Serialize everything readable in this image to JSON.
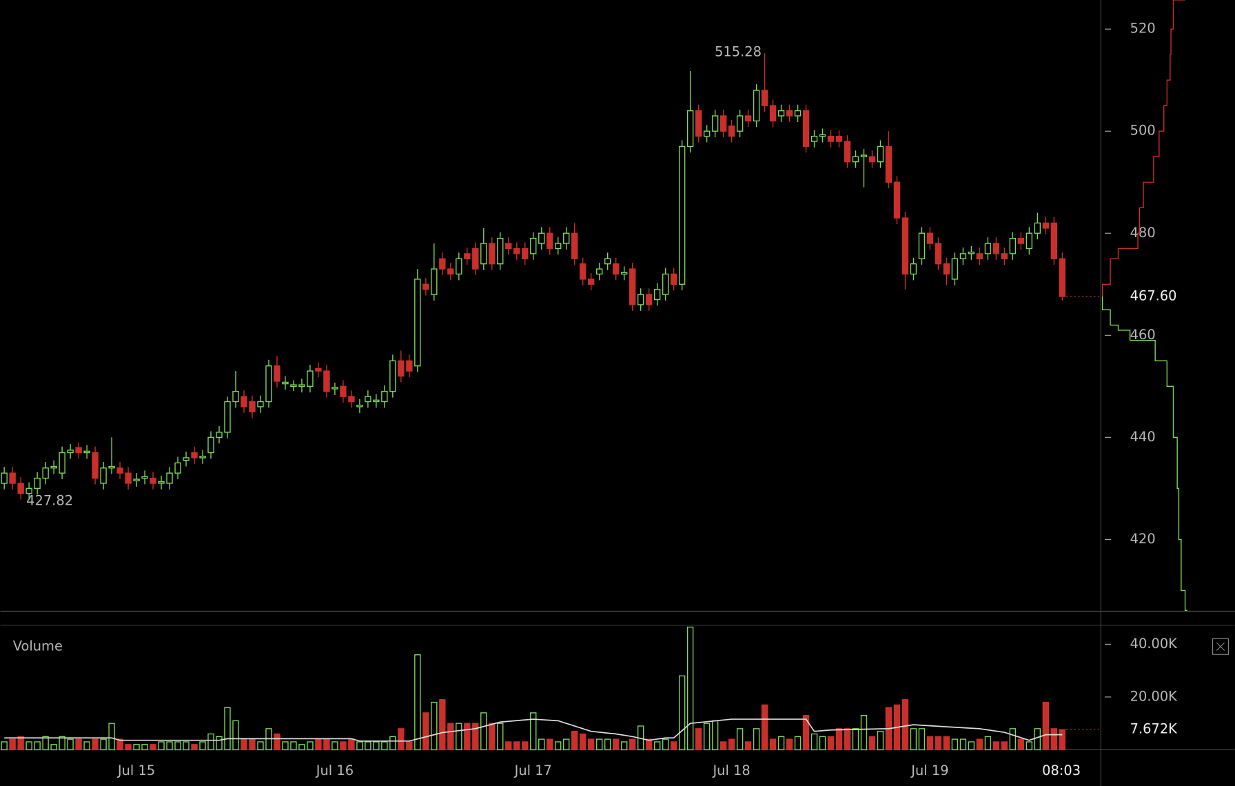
{
  "chart_data": [
    {
      "type": "candlestick",
      "open": [
        431,
        433,
        431,
        429,
        430,
        432,
        434,
        433,
        437,
        438,
        437,
        437,
        431,
        434,
        434,
        433,
        431.5,
        432,
        432,
        431,
        431,
        433,
        435.5,
        437,
        436,
        437,
        440,
        441,
        447,
        448,
        447,
        446,
        447,
        454,
        450.5,
        450,
        450,
        450,
        453.5,
        453,
        449.5,
        450,
        448,
        446,
        447,
        447,
        447,
        449,
        455,
        455,
        454,
        470,
        468,
        475,
        473,
        472,
        476,
        477,
        474,
        478,
        474,
        478,
        477,
        477,
        476,
        478,
        480,
        477,
        478,
        480,
        474,
        471,
        472,
        474,
        474,
        472,
        473,
        466,
        468,
        467,
        468,
        472,
        470,
        497,
        504,
        499,
        500,
        503,
        501,
        500,
        503,
        502,
        508,
        505,
        503,
        504,
        503,
        504,
        498,
        499,
        499,
        499,
        498,
        494,
        495,
        495,
        494,
        497,
        490,
        483,
        472,
        475,
        480,
        478,
        474,
        471,
        475,
        476,
        476,
        476,
        478,
        476,
        476,
        479,
        477,
        480,
        482,
        482,
        475
      ],
      "high": [
        434.2,
        434.2,
        432.2,
        431.2,
        433.2,
        435.2,
        435.5,
        438.2,
        438.7,
        439,
        438.5,
        438.2,
        435.2,
        440,
        435.2,
        434.2,
        433,
        433.5,
        433.2,
        432.5,
        434.2,
        436.2,
        437.2,
        438.2,
        437.5,
        441.2,
        442.2,
        448,
        453,
        449.2,
        448.2,
        448.2,
        455.2,
        456,
        452,
        451.2,
        451.5,
        454.2,
        454.7,
        454.2,
        450.7,
        451.2,
        449.2,
        447.5,
        449.2,
        448.5,
        450.2,
        456.2,
        457,
        456.2,
        473,
        471.2,
        478,
        476.2,
        474.2,
        476.2,
        477.2,
        478.2,
        481,
        479.2,
        480.2,
        479.2,
        478.2,
        478.2,
        480.2,
        481.2,
        481.2,
        479.2,
        481.2,
        482,
        475.2,
        472.2,
        474.2,
        476.2,
        475.2,
        473.5,
        474.2,
        469.2,
        469.2,
        470.2,
        473.2,
        473.2,
        498.2,
        511.8,
        505.2,
        501.2,
        504.2,
        504.2,
        502.2,
        504.2,
        504.2,
        509.2,
        515.28,
        506.2,
        505.2,
        505.2,
        505.2,
        505.2,
        500.2,
        500.5,
        500.2,
        500.2,
        499.2,
        496.2,
        496.5,
        496.2,
        498.2,
        500,
        491.2,
        484.2,
        475.2,
        481.2,
        481.2,
        479.2,
        475.2,
        476.2,
        477.2,
        477.5,
        477.2,
        479.2,
        479.2,
        477.2,
        480.2,
        480.2,
        481.2,
        484,
        483.2,
        483.2,
        476.2
      ],
      "low": [
        429.8,
        429.8,
        427.82,
        427.8,
        428.8,
        430.8,
        432.8,
        431.8,
        435.8,
        435.8,
        435.8,
        430.8,
        429.8,
        432.8,
        431.8,
        429.8,
        430.3,
        430.8,
        429.8,
        429.8,
        429.8,
        431.8,
        434.3,
        434.8,
        434.8,
        435.8,
        438.8,
        439.8,
        445.8,
        444.8,
        443.8,
        444.8,
        445.8,
        449.8,
        449.3,
        449.1,
        448.8,
        448.8,
        451.8,
        447.8,
        448.3,
        446.8,
        445.8,
        444.8,
        445.8,
        445.8,
        445.8,
        447.8,
        450.8,
        451.8,
        452.8,
        467.8,
        466.8,
        471.8,
        470.8,
        470.8,
        473.8,
        471.8,
        472.8,
        472.8,
        472.8,
        475.8,
        474.8,
        473.8,
        474.8,
        476.8,
        475.8,
        475.8,
        476.8,
        473.8,
        469.8,
        468.8,
        470.8,
        472.8,
        470.8,
        470.8,
        464.8,
        464.8,
        464.8,
        465.8,
        466.8,
        468.8,
        468.8,
        495.8,
        497.8,
        497.8,
        498.8,
        498.8,
        497.8,
        498.8,
        500.8,
        500.8,
        503.8,
        500.8,
        501.8,
        501.8,
        501.8,
        495.8,
        496.8,
        497.8,
        496.8,
        496.8,
        492.8,
        492.8,
        489,
        492.8,
        492.8,
        488.8,
        481.8,
        469,
        470.8,
        473.8,
        476.8,
        472.8,
        469.8,
        469.8,
        473.8,
        474.8,
        473.8,
        474.8,
        474.8,
        473.8,
        474.8,
        476.8,
        475.8,
        478.8,
        479.8,
        473.8,
        466.8
      ],
      "close": [
        433,
        431,
        429,
        430,
        432,
        434,
        434.3,
        437,
        437.5,
        437,
        437.3,
        432,
        434,
        434.3,
        433,
        431,
        431.8,
        432.3,
        431,
        431.3,
        433,
        435,
        436,
        436,
        436.3,
        440,
        441,
        447,
        449,
        446,
        445,
        447,
        454,
        451,
        450.8,
        450.3,
        450.3,
        453,
        453,
        449,
        449.8,
        448,
        447,
        446.3,
        448,
        447.3,
        449,
        455,
        452,
        453,
        471,
        469,
        473,
        473,
        472,
        475,
        475,
        473,
        478,
        474,
        479,
        477,
        476,
        475,
        479,
        480,
        477,
        478,
        480,
        475,
        471,
        470,
        473,
        475,
        472,
        472.3,
        466,
        468,
        466,
        469,
        472,
        470,
        497,
        504,
        499,
        500,
        503,
        500,
        499,
        503,
        502,
        508,
        505,
        502,
        504,
        503,
        504,
        497,
        499,
        499.3,
        498,
        498,
        494,
        495,
        495.3,
        494,
        497,
        490,
        483,
        472,
        474,
        480,
        478,
        474,
        472,
        475,
        476,
        476.3,
        475,
        478,
        476,
        475,
        479,
        478,
        480,
        482,
        481,
        475,
        467.6
      ],
      "up_color": "#7ed957",
      "down_color": "#c9302c",
      "xlim": [
        -0.476,
        132.67
      ],
      "ylim": [
        406.1,
        525.7
      ],
      "yticks": [
        420,
        440,
        460,
        480,
        500,
        520
      ],
      "annotations": [
        {
          "x": 92,
          "value": 515.28,
          "label": "515.28"
        },
        {
          "x": 2,
          "value": 427.82,
          "label": "427.82"
        }
      ],
      "last_value": {
        "value": 467.6,
        "label": "467.60"
      },
      "depth": {
        "xlim": [
          0,
          168
        ],
        "asks": {
          "color": "#c9302c",
          "price": [
            467.6,
            470,
            475,
            477,
            480,
            485,
            490,
            495,
            500,
            505,
            510,
            515,
            520,
            525.7
          ],
          "amount": [
            0,
            10,
            20,
            45,
            47,
            52,
            65,
            72,
            78,
            82,
            86,
            87,
            90,
            105
          ]
        },
        "bids": {
          "color": "#7ed957",
          "price": [
            467.6,
            465,
            462,
            461,
            459,
            455,
            450,
            440,
            430,
            420,
            410,
            406.1
          ],
          "amount": [
            0,
            10,
            20,
            35,
            67,
            82,
            90,
            95,
            97,
            100,
            105,
            108
          ]
        }
      }
    },
    {
      "type": "bar",
      "title": "Volume",
      "values": [
        3000,
        4000,
        5000,
        3000,
        3000,
        5000,
        2000,
        5000,
        4000,
        4000,
        3000,
        4000,
        4000,
        10000,
        4000,
        2000,
        2000,
        2000,
        2000,
        3000,
        3000,
        3000,
        3000,
        2000,
        3000,
        6000,
        5000,
        16000,
        11000,
        4000,
        4000,
        3000,
        8000,
        6000,
        3000,
        3000,
        2000,
        3000,
        4000,
        4000,
        3000,
        3000,
        4000,
        3000,
        3000,
        3000,
        3000,
        5000,
        8000,
        3000,
        36000,
        14000,
        18000,
        19000,
        10000,
        10000,
        10000,
        10000,
        14000,
        10000,
        10000,
        3000,
        3000,
        3000,
        14000,
        4000,
        4000,
        3000,
        4000,
        7000,
        6000,
        4000,
        4000,
        4000,
        4000,
        3000,
        4000,
        9000,
        4000,
        3000,
        4000,
        3000,
        28000,
        46500,
        8000,
        10000,
        11000,
        3000,
        4000,
        8000,
        3000,
        8000,
        17000,
        4000,
        5000,
        4000,
        5000,
        13000,
        6000,
        5000,
        5000,
        8000,
        8000,
        8000,
        13000,
        5000,
        7000,
        16000,
        17000,
        19000,
        8000,
        8000,
        5000,
        5000,
        5000,
        4000,
        4000,
        3000,
        4000,
        5000,
        3000,
        3000,
        8000,
        4000,
        3000,
        8000,
        18000,
        8000,
        7672
      ],
      "ma": {
        "color": "#dddddd",
        "x": [
          0,
          13,
          14,
          26,
          27,
          42,
          43,
          49,
          53,
          57,
          60,
          64,
          67,
          71,
          74,
          76,
          78,
          80,
          81,
          83,
          88,
          97,
          98,
          100,
          107,
          110,
          114,
          118,
          121,
          124,
          126,
          128
        ],
        "values": [
          4500,
          4500,
          3600,
          3600,
          4200,
          4200,
          3300,
          3300,
          6500,
          8000,
          10500,
          11600,
          11000,
          7000,
          6000,
          5000,
          3600,
          4500,
          4500,
          10000,
          11600,
          11600,
          7000,
          7500,
          8000,
          9500,
          8700,
          8000,
          6600,
          3600,
          5700,
          5700
        ]
      },
      "xlim": [
        -0.476,
        132.67
      ],
      "ylim": [
        0,
        46870
      ],
      "yticks": [
        {
          "value": 20000,
          "label": "20.00K"
        },
        {
          "value": 40000,
          "label": "40.00K"
        }
      ],
      "xticks": [
        {
          "value": 16,
          "label": "Jul 15"
        },
        {
          "value": 40,
          "label": "Jul 16"
        },
        {
          "value": 64,
          "label": "Jul 17"
        },
        {
          "value": 88,
          "label": "Jul 18"
        },
        {
          "value": 112,
          "label": "Jul 19"
        },
        {
          "value": 127.9,
          "label": "08:03"
        }
      ],
      "last_value": {
        "value": 7672,
        "label": "7.672K"
      }
    }
  ]
}
